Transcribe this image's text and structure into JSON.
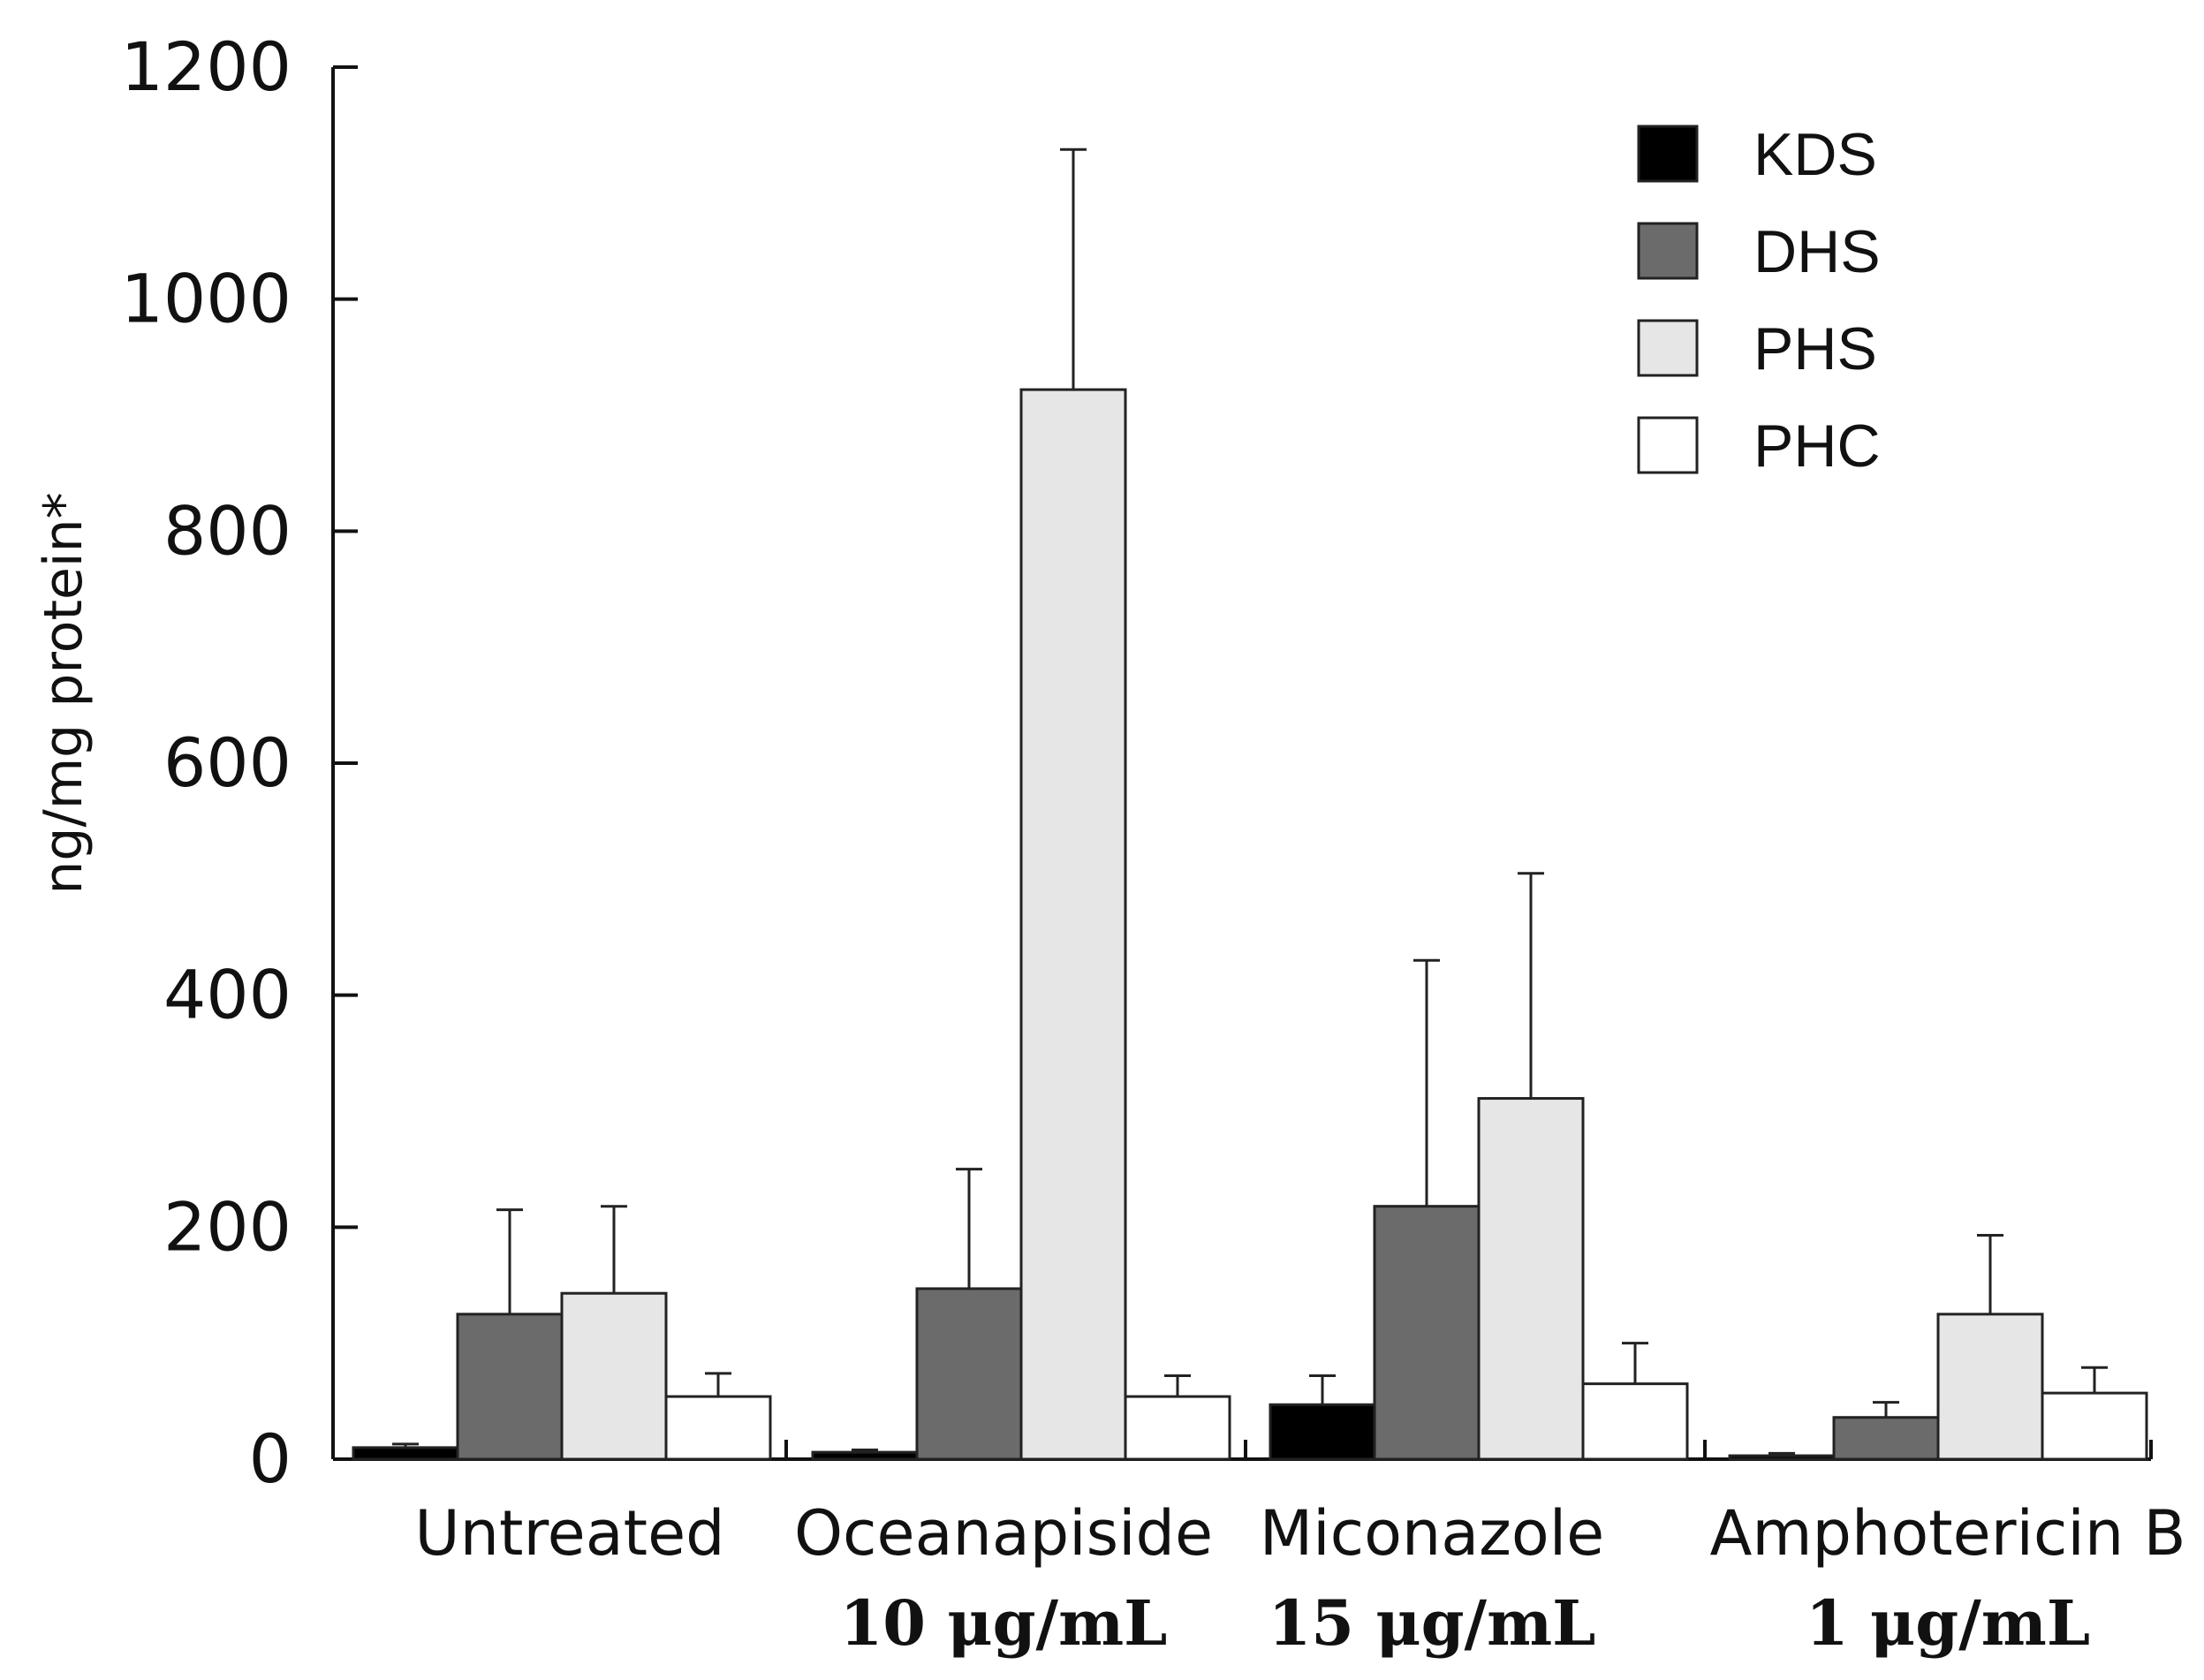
{
  "chart_data": {
    "type": "bar",
    "title": "",
    "xlabel": "",
    "ylabel": "ng/mg protein*",
    "ylim": [
      0,
      1200
    ],
    "yticks": [
      0,
      200,
      400,
      600,
      800,
      1000,
      1200
    ],
    "grid": false,
    "legend_position": "top-right",
    "categories": [
      {
        "name": "Untreated",
        "sub": ""
      },
      {
        "name": "Oceanapiside",
        "sub": "10 μg/mL"
      },
      {
        "name": "Miconazole",
        "sub": "15 μg/mL"
      },
      {
        "name": "Amphotericin B",
        "sub": "1 μg/mL"
      }
    ],
    "series": [
      {
        "name": "KDS",
        "color": "#000000",
        "values": [
          10,
          6,
          47,
          3
        ],
        "errors": [
          3,
          2,
          25,
          2
        ]
      },
      {
        "name": "DHS",
        "color": "#6b6b6b",
        "values": [
          125,
          147,
          218,
          36
        ],
        "errors": [
          90,
          103,
          212,
          13
        ]
      },
      {
        "name": "PHS",
        "color": "#e6e6e6",
        "values": [
          143,
          922,
          311,
          125
        ],
        "errors": [
          75,
          207,
          194,
          68
        ]
      },
      {
        "name": "PHC",
        "color": "#ffffff",
        "values": [
          54,
          54,
          65,
          57
        ],
        "errors": [
          20,
          18,
          35,
          22
        ]
      }
    ]
  }
}
